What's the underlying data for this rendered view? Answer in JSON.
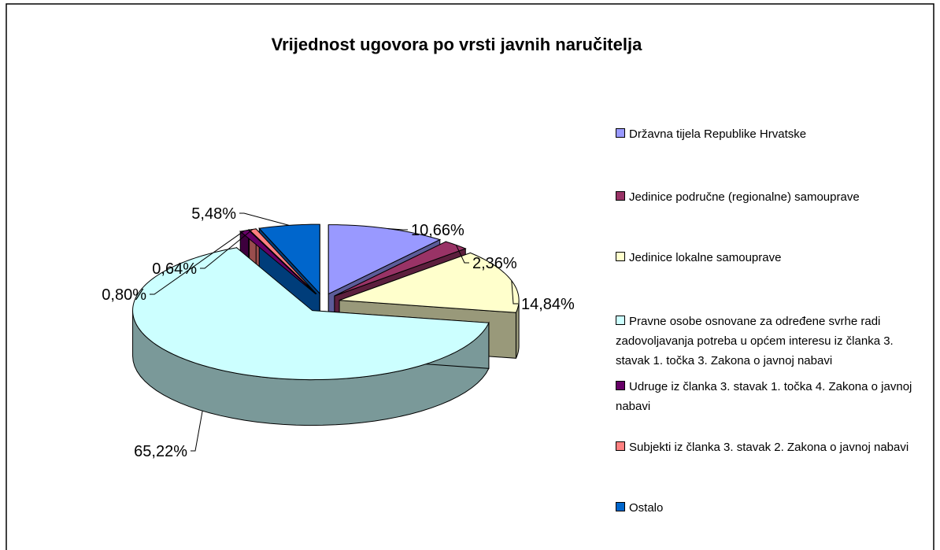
{
  "chart_data": {
    "type": "pie3d",
    "title": "Vrijednost ugovora po vrsti javnih naručitelja",
    "categories": [
      "Državna tijela Republike Hrvatske",
      "Jedinice područne (regionalne) samouprave",
      "Jedinice lokalne samouprave",
      "Pravne osobe osnovane za određene svrhe radi zadovoljavanja potreba u općem interesu  iz članka 3. stavak 1. točka 3. Zakona  o javnoj nabavi",
      "Udruge iz članka 3. stavak 1. točka 4. Zakona o javnoj nabavi",
      "Subjekti iz članka 3. stavak 2. Zakona o javnoj nabavi",
      "Ostalo"
    ],
    "values": [
      10.66,
      2.36,
      14.84,
      65.22,
      0.8,
      0.64,
      5.48
    ],
    "value_labels": [
      "10,66%",
      "2,36%",
      "14,84%",
      "65,22%",
      "0,80%",
      "0,64%",
      "5,48%"
    ],
    "colors": [
      "#9999ff",
      "#993366",
      "#ffffcc",
      "#ccffff",
      "#660066",
      "#ff8080",
      "#0066cc"
    ],
    "legend": "right"
  }
}
